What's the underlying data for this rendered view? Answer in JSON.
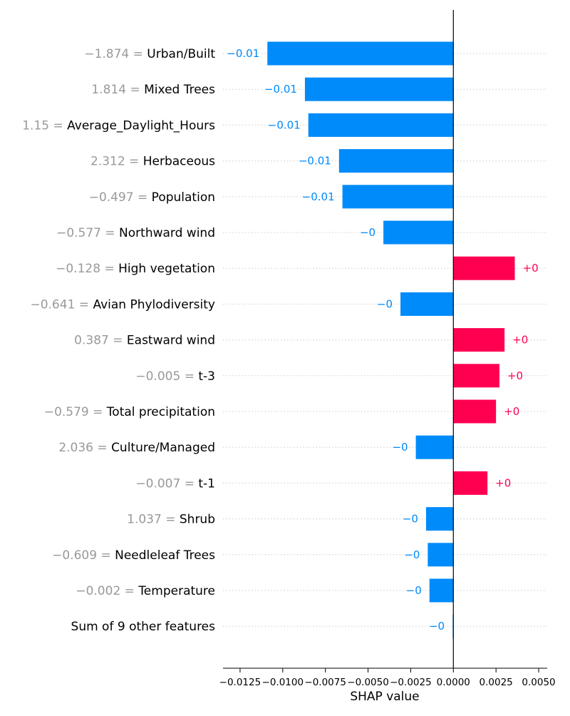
{
  "chart_data": {
    "type": "bar",
    "orientation": "horizontal",
    "xlabel": "SHAP value",
    "xlim": [
      -0.0135,
      0.0055
    ],
    "xticks": [
      -0.0125,
      -0.01,
      -0.0075,
      -0.005,
      -0.0025,
      0.0,
      0.0025,
      0.005
    ],
    "xtick_labels": [
      "−0.0125",
      "−0.0100",
      "−0.0075",
      "−0.0050",
      "−0.0025",
      "0.0000",
      "0.0025",
      "0.0050"
    ],
    "grid": "horizontal-dotted",
    "colors": {
      "positive": "#ff0051",
      "negative": "#008bfb",
      "feature_value": "#999999",
      "feature_name": "#000000",
      "axis": "#000000",
      "grid": "#cccccc"
    },
    "rows": [
      {
        "feature_value": "−1.874 =",
        "feature": "Urban/Built",
        "value": -0.0109,
        "value_label": "−0.01"
      },
      {
        "feature_value": "1.814 =",
        "feature": "Mixed Trees",
        "value": -0.0087,
        "value_label": "−0.01"
      },
      {
        "feature_value": "1.15 =",
        "feature": "Average_Daylight_Hours",
        "value": -0.0085,
        "value_label": "−0.01"
      },
      {
        "feature_value": "2.312 =",
        "feature": "Herbaceous",
        "value": -0.0067,
        "value_label": "−0.01"
      },
      {
        "feature_value": "−0.497 =",
        "feature": "Population",
        "value": -0.0065,
        "value_label": "−0.01"
      },
      {
        "feature_value": "−0.577 =",
        "feature": "Northward wind",
        "value": -0.0041,
        "value_label": "−0"
      },
      {
        "feature_value": "−0.128 =",
        "feature": "High vegetation",
        "value": 0.0036,
        "value_label": "+0"
      },
      {
        "feature_value": "−0.641 =",
        "feature": "Avian Phylodiversity",
        "value": -0.0031,
        "value_label": "−0"
      },
      {
        "feature_value": "0.387 =",
        "feature": "Eastward wind",
        "value": 0.003,
        "value_label": "+0"
      },
      {
        "feature_value": "−0.005 =",
        "feature": "t-3",
        "value": 0.0027,
        "value_label": "+0"
      },
      {
        "feature_value": "−0.579 =",
        "feature": "Total precipitation",
        "value": 0.0025,
        "value_label": "+0"
      },
      {
        "feature_value": "2.036 =",
        "feature": "Culture/Managed",
        "value": -0.0022,
        "value_label": "−0"
      },
      {
        "feature_value": "−0.007 =",
        "feature": "t-1",
        "value": 0.002,
        "value_label": "+0"
      },
      {
        "feature_value": "1.037 =",
        "feature": "Shrub",
        "value": -0.0016,
        "value_label": "−0"
      },
      {
        "feature_value": "−0.609 =",
        "feature": "Needleleaf Trees",
        "value": -0.0015,
        "value_label": "−0"
      },
      {
        "feature_value": "−0.002 =",
        "feature": "Temperature",
        "value": -0.0014,
        "value_label": "−0"
      },
      {
        "feature_value": "",
        "feature": "Sum of 9 other features",
        "value": -5e-05,
        "value_label": "−0"
      }
    ]
  }
}
